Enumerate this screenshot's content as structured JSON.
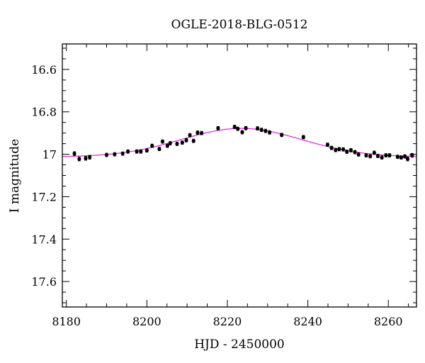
{
  "chart_data": {
    "type": "scatter",
    "title": "OGLE-2018-BLG-0512",
    "xlabel": "HJD - 2450000",
    "ylabel": "I magnitude",
    "xlim": [
      8179,
      8267
    ],
    "ylim": [
      17.72,
      16.48
    ],
    "y_inverted": true,
    "grid": false,
    "x_ticks": [
      8180,
      8200,
      8220,
      8240,
      8260
    ],
    "x_tick_labels": [
      "8180",
      "8200",
      "8220",
      "8240",
      "8260"
    ],
    "y_ticks": [
      16.6,
      16.8,
      17.0,
      17.2,
      17.4,
      17.6
    ],
    "y_tick_labels": [
      "16.6",
      "16.8",
      "17",
      "17.2",
      "17.4",
      "17.6"
    ],
    "colors": {
      "points": "#000000",
      "model": "#e020e0",
      "axes": "#000000"
    },
    "model": {
      "name": "",
      "baseline_mag": 17.012,
      "peak_mag": 16.878,
      "t0": 8223.5,
      "sigma": 15.0
    },
    "series": [
      {
        "name": "",
        "x": [
          8182.0,
          8183.2,
          8184.8,
          8185.8,
          8190.0,
          8192.0,
          8194.0,
          8195.3,
          8197.5,
          8198.5,
          8200.0,
          8201.3,
          8203.1,
          8203.9,
          8205.1,
          8205.8,
          8207.5,
          8208.8,
          8209.8,
          8210.7,
          8211.6,
          8212.6,
          8213.6,
          8217.7,
          8221.8,
          8222.6,
          8223.7,
          8224.6,
          8227.5,
          8228.5,
          8229.5,
          8230.5,
          8233.5,
          8238.9,
          8244.9,
          8245.9,
          8246.9,
          8247.8,
          8248.8,
          8249.7,
          8250.7,
          8251.7,
          8252.6,
          8254.5,
          8255.5,
          8256.5,
          8257.4,
          8258.4,
          8259.4,
          8260.3,
          8262.3,
          8263.2,
          8264.1,
          8264.8,
          8265.9
        ],
        "y": [
          16.997,
          17.022,
          17.019,
          17.014,
          17.003,
          17.0,
          16.997,
          16.987,
          16.987,
          16.987,
          16.982,
          16.96,
          16.975,
          16.94,
          16.96,
          16.948,
          16.951,
          16.945,
          16.934,
          16.91,
          16.937,
          16.898,
          16.9,
          16.877,
          16.871,
          16.88,
          16.896,
          16.877,
          16.878,
          16.885,
          16.89,
          16.897,
          16.909,
          16.919,
          16.955,
          16.97,
          16.98,
          16.976,
          16.977,
          16.988,
          16.981,
          16.99,
          17.001,
          17.005,
          17.009,
          16.993,
          17.008,
          17.015,
          17.005,
          17.005,
          17.012,
          17.015,
          17.01,
          17.022,
          17.005
        ],
        "yerr": [
          0.009,
          0.009,
          0.009,
          0.009,
          0.008,
          0.008,
          0.008,
          0.008,
          0.008,
          0.008,
          0.008,
          0.008,
          0.008,
          0.008,
          0.008,
          0.008,
          0.008,
          0.008,
          0.008,
          0.008,
          0.008,
          0.008,
          0.008,
          0.008,
          0.008,
          0.008,
          0.008,
          0.008,
          0.008,
          0.008,
          0.008,
          0.008,
          0.008,
          0.008,
          0.008,
          0.008,
          0.008,
          0.008,
          0.008,
          0.008,
          0.008,
          0.008,
          0.008,
          0.008,
          0.008,
          0.008,
          0.008,
          0.008,
          0.008,
          0.008,
          0.008,
          0.008,
          0.008,
          0.009,
          0.009
        ]
      }
    ]
  }
}
